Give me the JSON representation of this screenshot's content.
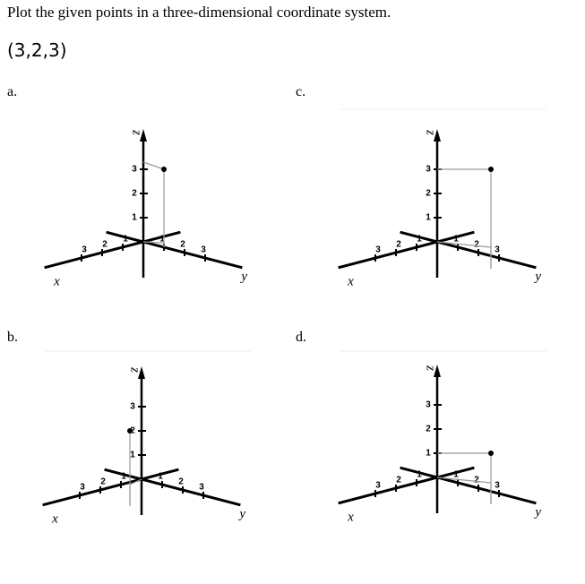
{
  "question": "Plot the given points in a three-dimensional coordinate system.",
  "point": "(3,2,3)",
  "options": [
    {
      "label": "a.",
      "axes": {
        "x": "x",
        "y": "y",
        "z": "z"
      },
      "z_ticks": [
        "1",
        "2",
        "3"
      ],
      "x_ticks": [
        "1",
        "2",
        "3"
      ],
      "y_ticks": [
        "1",
        "2",
        "3"
      ]
    },
    {
      "label": "c.",
      "axes": {
        "x": "x",
        "y": "y",
        "z": "z"
      },
      "z_ticks": [
        "1",
        "2",
        "3"
      ],
      "x_ticks": [
        "1",
        "2",
        "3"
      ],
      "y_ticks": [
        "1",
        "2",
        "3"
      ]
    },
    {
      "label": "b.",
      "axes": {
        "x": "x",
        "y": "y",
        "z": "z"
      },
      "z_ticks": [
        "1",
        "2",
        "3"
      ],
      "x_ticks": [
        "1",
        "2",
        "3"
      ],
      "y_ticks": [
        "1",
        "2",
        "3"
      ]
    },
    {
      "label": "d.",
      "axes": {
        "x": "x",
        "y": "y",
        "z": "z"
      },
      "z_ticks": [
        "1",
        "2",
        "3"
      ],
      "x_ticks": [
        "1",
        "2",
        "3"
      ],
      "y_ticks": [
        "1",
        "2",
        "3"
      ]
    }
  ]
}
